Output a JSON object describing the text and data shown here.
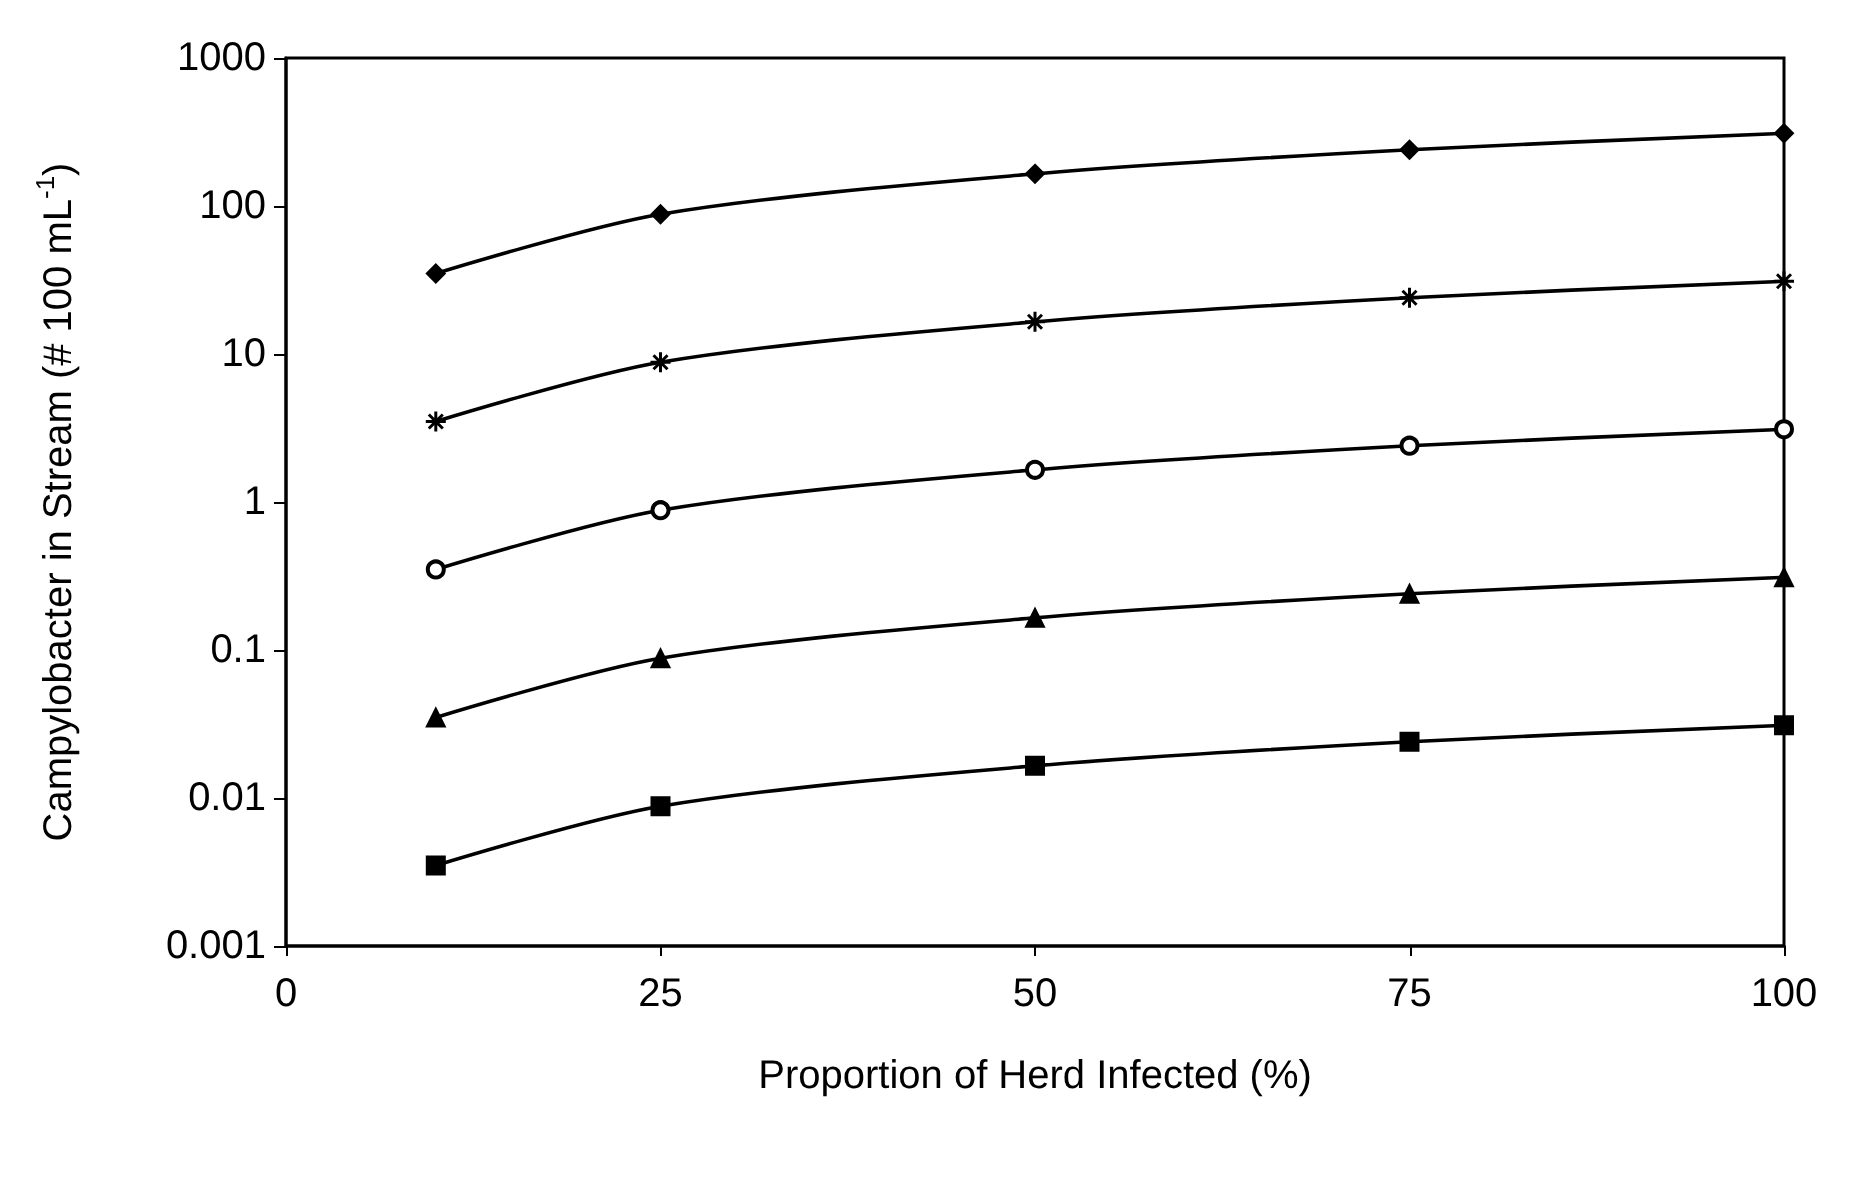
{
  "chart_data": {
    "type": "line",
    "xlabel": "Proportion of Herd Infected (%)",
    "ylabel": "Campylobacter in Stream (# 100 mL$^{-1}$)",
    "x": [
      10,
      25,
      50,
      75,
      100
    ],
    "series": [
      {
        "color": "#000000",
        "marker": "diamond",
        "values": [
          35,
          88,
          165,
          240,
          310
        ]
      },
      {
        "color": "#000000",
        "marker": "cross",
        "values": [
          3.5,
          8.8,
          16.5,
          24,
          31
        ]
      },
      {
        "color": "#000000",
        "marker": "circle",
        "values": [
          0.35,
          0.88,
          1.65,
          2.4,
          3.1
        ]
      },
      {
        "color": "#000000",
        "marker": "triangle",
        "values": [
          0.035,
          0.088,
          0.165,
          0.24,
          0.31
        ]
      },
      {
        "color": "#000000",
        "marker": "square",
        "values": [
          0.0035,
          0.0088,
          0.0165,
          0.024,
          0.031
        ]
      }
    ],
    "log": "y",
    "xlim": [
      0,
      100
    ],
    "xticks": [
      0,
      25,
      50,
      75,
      100
    ],
    "ylim": [
      0.001,
      1000
    ],
    "yticks": [
      0.001,
      0.01,
      0.1,
      1,
      10,
      100,
      1000
    ],
    "grid": false,
    "line_style": "solid"
  }
}
